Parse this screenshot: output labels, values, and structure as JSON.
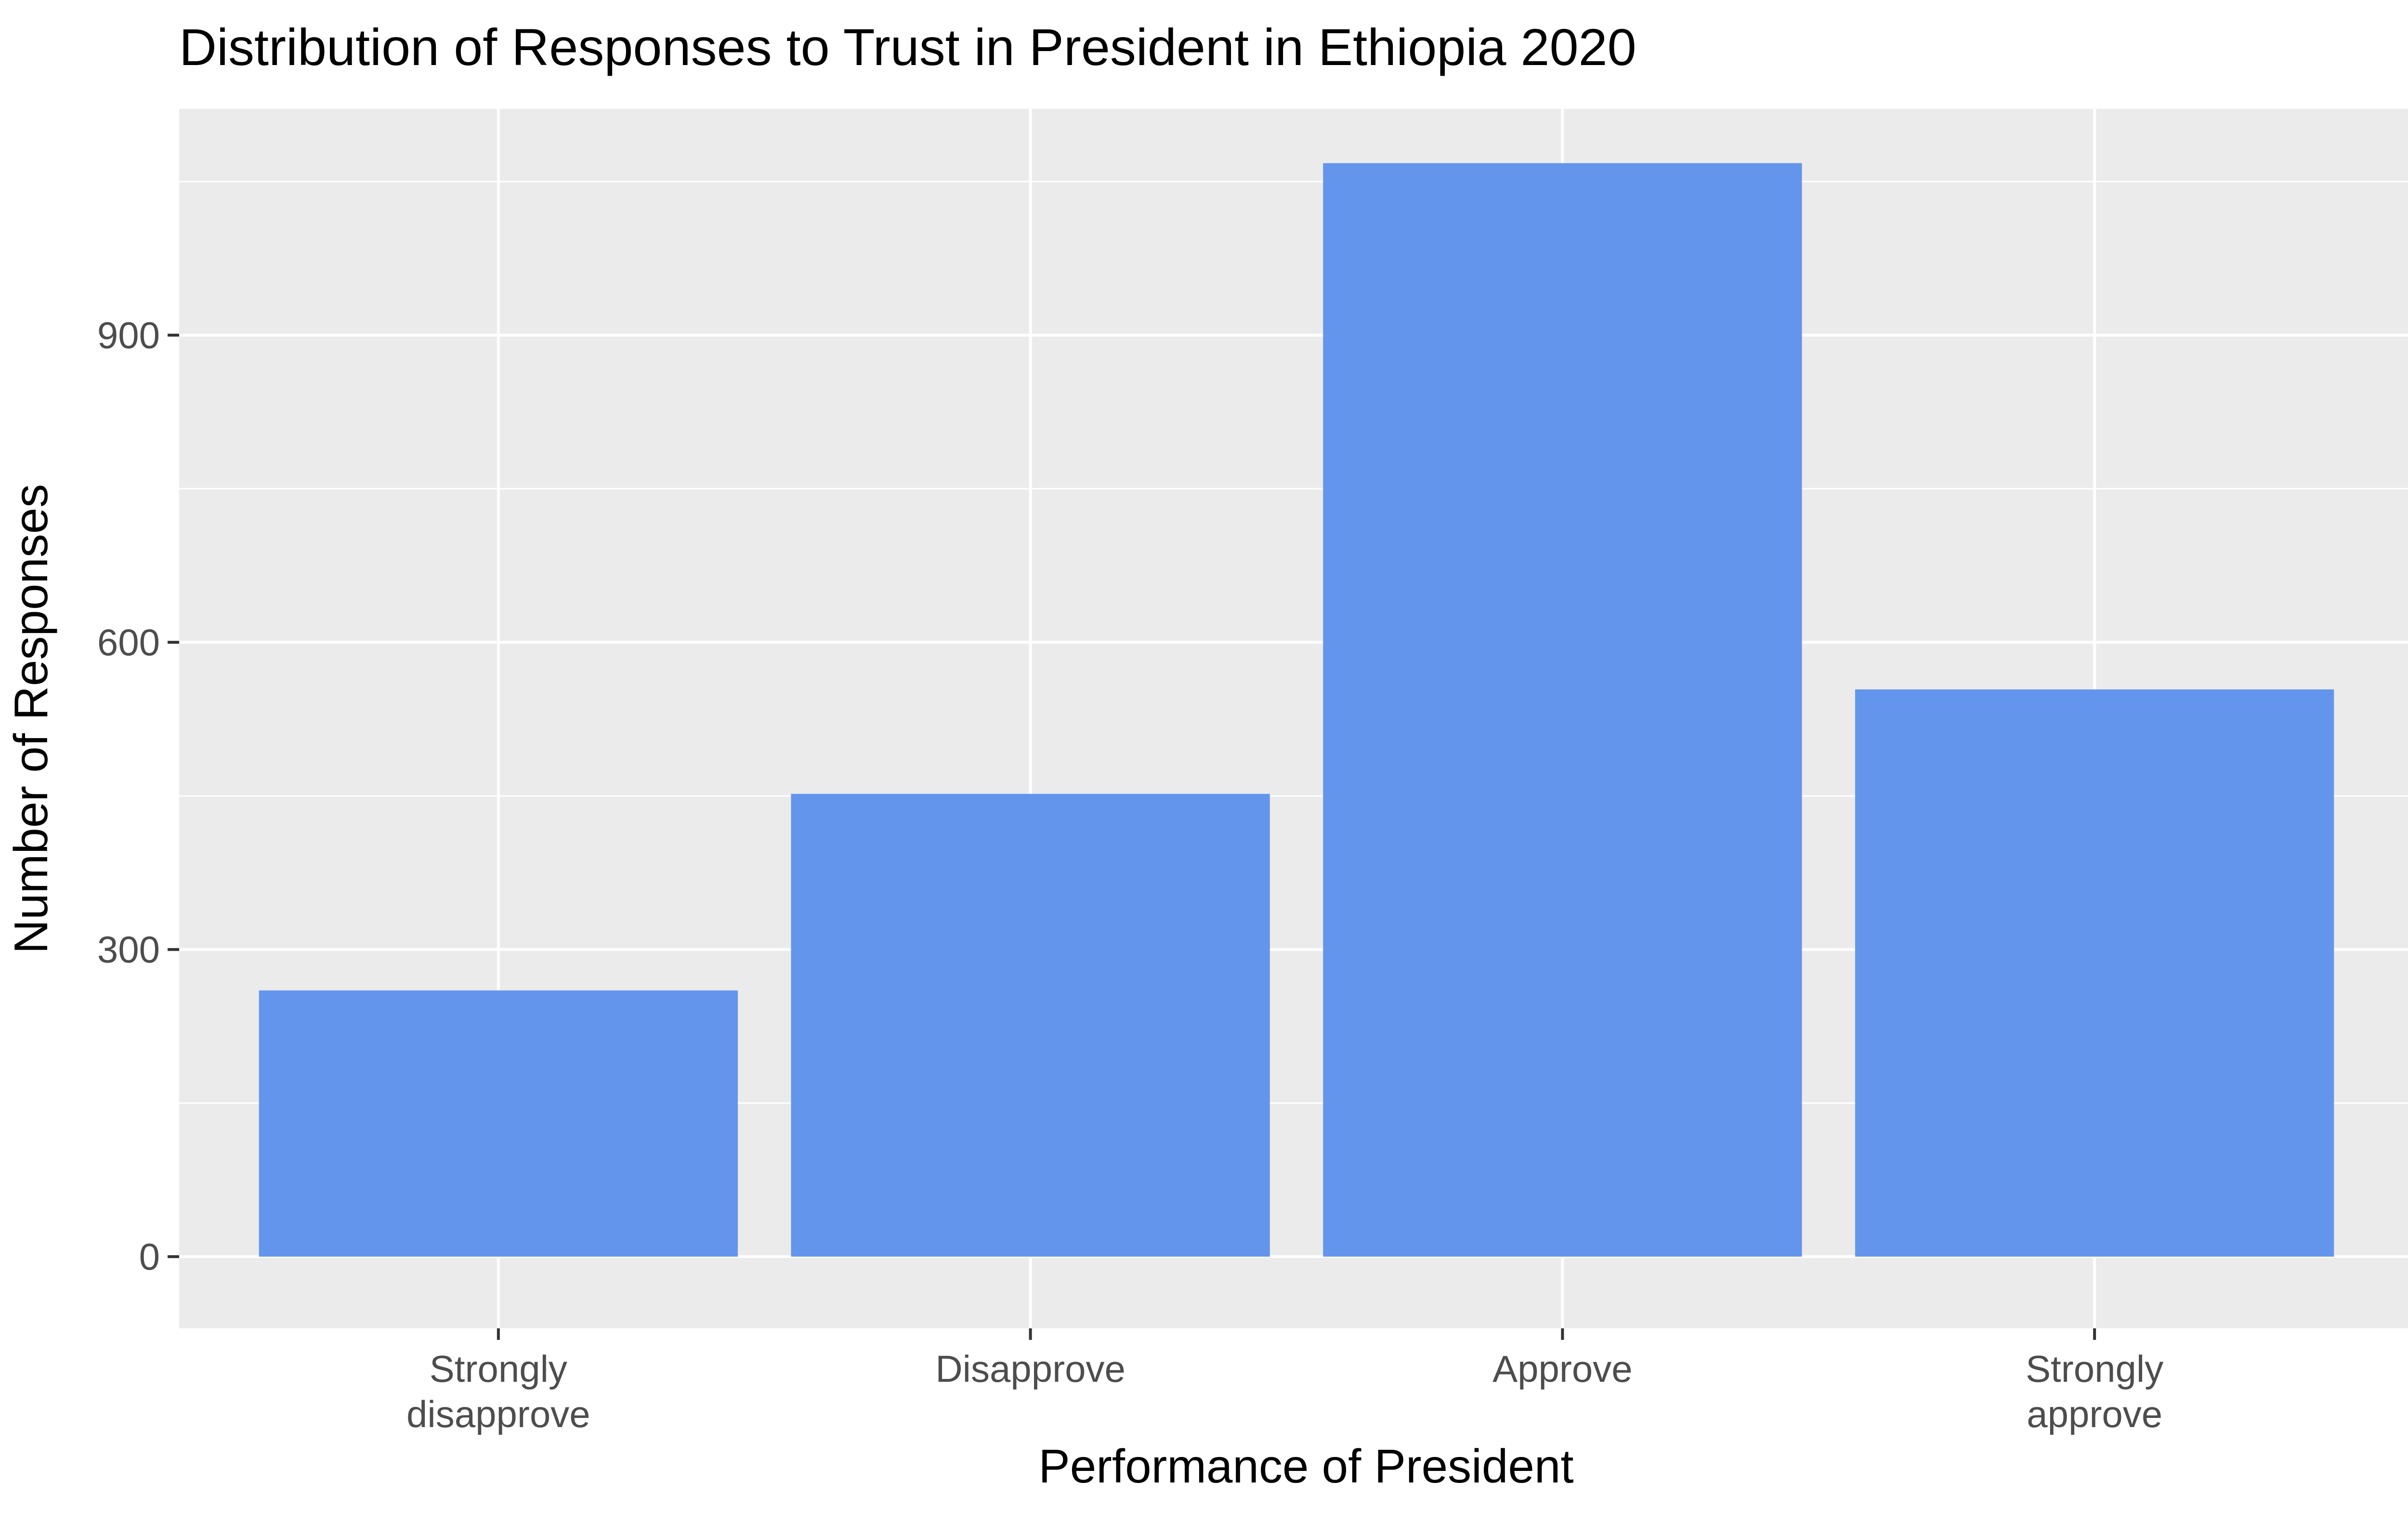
{
  "chart_data": {
    "type": "bar",
    "title": "Distribution of Responses to Trust in President in Ethiopia 2020",
    "xlabel": "Performance of President",
    "ylabel": "Number of Responses",
    "categories": [
      [
        "Strongly",
        "disapprove"
      ],
      [
        "Disapprove"
      ],
      [
        "Approve"
      ],
      [
        "Strongly",
        "approve"
      ]
    ],
    "values": [
      260,
      452,
      1068,
      554
    ],
    "ylim": [
      -70,
      1121
    ],
    "y_ticks": [
      0,
      300,
      600,
      900
    ],
    "y_tick_labels": [
      "0",
      "300",
      "600",
      "900"
    ],
    "y_minor_ticks": [
      150,
      450,
      750,
      1050
    ],
    "grid": true,
    "colors": {
      "bar": "#6495ED",
      "panel_background": "#EBEBEB",
      "grid": "#FFFFFF",
      "tick_label": "#4D4D4D",
      "axis_tick": "#333333"
    }
  }
}
